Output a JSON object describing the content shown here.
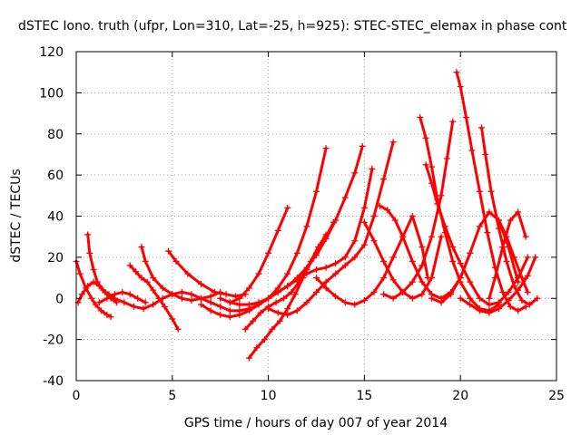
{
  "chart_data": {
    "type": "line",
    "title": "dSTEC Iono. truth (ufpr, Lon=310, Lat=-25, h=925): STEC-STEC_elemax in phase cont",
    "xlabel": "GPS time / hours of day 007 of year 2014",
    "ylabel": "dSTEC  / TECUs",
    "xlim": [
      0,
      25
    ],
    "ylim": [
      -40,
      120
    ],
    "xticks": [
      0,
      5,
      10,
      15,
      20,
      25
    ],
    "yticks": [
      -40,
      -20,
      0,
      20,
      40,
      60,
      80,
      100,
      120
    ],
    "grid": true,
    "legend": "none",
    "color": "#ff0000",
    "series": [
      {
        "x": [
          0.0,
          0.2,
          0.5,
          0.8,
          1.0,
          1.3,
          1.6,
          1.8
        ],
        "y": [
          18,
          12,
          5,
          0,
          -3,
          -6,
          -8,
          -9
        ]
      },
      {
        "x": [
          0.1,
          0.3,
          0.6,
          0.9,
          1.2,
          1.5,
          1.8,
          2.1
        ],
        "y": [
          -2,
          2,
          6,
          8,
          6,
          3,
          0,
          -2
        ]
      },
      {
        "x": [
          0.6,
          0.7,
          0.9,
          1.1,
          1.4,
          1.7,
          2.0
        ],
        "y": [
          31,
          22,
          14,
          8,
          4,
          2,
          0
        ]
      },
      {
        "x": [
          1.2,
          1.6,
          2.0,
          2.4,
          2.8,
          3.2,
          3.6
        ],
        "y": [
          -2,
          0,
          2,
          3,
          2,
          0,
          -2
        ]
      },
      {
        "x": [
          2.8,
          3.1,
          3.4,
          3.7,
          4.0,
          4.3,
          4.6,
          5.0,
          5.3
        ],
        "y": [
          16,
          13,
          10,
          8,
          4,
          0,
          -4,
          -10,
          -15
        ]
      },
      {
        "x": [
          3.4,
          3.6,
          4.0,
          4.5,
          5.0,
          5.5,
          6.0,
          6.5,
          7.0,
          7.5
        ],
        "y": [
          25,
          18,
          10,
          5,
          2,
          0,
          -1,
          0,
          1,
          3
        ]
      },
      {
        "x": [
          4.8,
          5.2,
          5.8,
          6.5,
          7.2,
          7.8,
          8.3,
          8.8
        ],
        "y": [
          23,
          18,
          12,
          7,
          3,
          2,
          1,
          2
        ]
      },
      {
        "x": [
          2.0,
          2.5,
          3.0,
          3.5,
          4.0,
          4.5,
          5.0,
          5.5,
          6.0,
          6.5,
          7.0,
          7.5,
          8.0,
          8.5,
          9.0,
          9.5,
          10.0,
          10.5,
          11.0,
          11.5,
          12.0,
          12.5,
          13.0
        ],
        "y": [
          0,
          -2,
          -4,
          -5,
          -3,
          0,
          2,
          3,
          2,
          0,
          -2,
          -4,
          -6,
          -6,
          -5,
          -3,
          0,
          5,
          12,
          22,
          35,
          52,
          73
        ]
      },
      {
        "x": [
          6.5,
          7.0,
          7.5,
          8.0,
          8.5,
          9.0,
          9.5,
          10.0,
          10.5,
          11.0,
          11.5,
          12.0,
          12.5,
          13.0,
          13.5,
          14.0,
          14.5,
          14.9
        ],
        "y": [
          -3,
          -6,
          -8,
          -9,
          -8,
          -6,
          -3,
          0,
          3,
          6,
          10,
          15,
          21,
          29,
          38,
          49,
          61,
          74
        ]
      },
      {
        "x": [
          7.5,
          8.0,
          8.5,
          9.0,
          9.5,
          10.0,
          10.5,
          11.0,
          11.5,
          12.0,
          12.5,
          13.0,
          13.5,
          14.0,
          14.5,
          15.0,
          15.4
        ],
        "y": [
          0,
          -2,
          -3,
          -3,
          -2,
          0,
          3,
          6,
          9,
          12,
          14,
          15,
          17,
          20,
          28,
          44,
          63
        ]
      },
      {
        "x": [
          8.0,
          8.5,
          9.0,
          9.5,
          10.0,
          10.5,
          11.0
        ],
        "y": [
          -2,
          0,
          5,
          12,
          22,
          33,
          44
        ]
      },
      {
        "x": [
          8.8,
          9.2,
          9.6,
          10.0,
          10.4,
          10.8,
          11.2,
          11.6,
          12.0,
          12.5,
          13.0,
          13.4
        ],
        "y": [
          -15,
          -11,
          -7,
          -4,
          -2,
          0,
          3,
          8,
          14,
          22,
          30,
          37
        ]
      },
      {
        "x": [
          9.0,
          9.4,
          9.8,
          10.2,
          10.6,
          11.0,
          11.4,
          11.8,
          12.2,
          12.6,
          13.0
        ],
        "y": [
          -29,
          -24,
          -20,
          -15,
          -11,
          -5,
          2,
          10,
          18,
          25,
          31
        ]
      },
      {
        "x": [
          10.0,
          10.5,
          11.0,
          11.5,
          12.0,
          12.5,
          13.0,
          13.5,
          14.0,
          14.5,
          15.0,
          15.5,
          16.0,
          16.5
        ],
        "y": [
          -5,
          -7,
          -8,
          -6,
          -2,
          3,
          8,
          12,
          16,
          20,
          26,
          40,
          58,
          76
        ]
      },
      {
        "x": [
          12.5,
          13.0,
          13.5,
          14.0,
          14.5,
          15.0,
          15.5,
          16.0,
          16.5,
          17.0,
          17.5,
          18.0,
          18.3
        ],
        "y": [
          10,
          5,
          1,
          -2,
          -3,
          -1,
          3,
          10,
          20,
          30,
          40,
          25,
          10
        ]
      },
      {
        "x": [
          15.0,
          15.5,
          16.0,
          16.5,
          17.0,
          17.5,
          18.0,
          18.5,
          19.0
        ],
        "y": [
          37,
          28,
          18,
          9,
          3,
          0,
          2,
          10,
          30
        ]
      },
      {
        "x": [
          15.8,
          16.2,
          16.6,
          17.0,
          17.5,
          18.0,
          18.5,
          19.0,
          19.5,
          20.0,
          20.5
        ],
        "y": [
          45,
          43,
          38,
          30,
          18,
          8,
          2,
          0,
          3,
          10,
          22
        ]
      },
      {
        "x": [
          17.9,
          18.2,
          18.5,
          18.8,
          19.2,
          19.6,
          20.0,
          20.5,
          21.0,
          21.5,
          22.0
        ],
        "y": [
          88,
          78,
          64,
          48,
          32,
          18,
          8,
          0,
          -5,
          -6,
          -3
        ]
      },
      {
        "x": [
          18.2,
          18.5,
          18.8,
          19.2,
          19.6,
          20.0,
          20.5,
          21.0,
          21.5,
          22.0,
          22.5,
          23.0,
          23.5
        ],
        "y": [
          65,
          56,
          46,
          35,
          25,
          17,
          8,
          0,
          -3,
          -2,
          3,
          10,
          20
        ]
      },
      {
        "x": [
          16.0,
          16.5,
          17.0,
          17.5,
          18.0,
          18.5,
          19.0,
          19.3,
          19.6
        ],
        "y": [
          2,
          0,
          3,
          8,
          16,
          30,
          50,
          68,
          86
        ]
      },
      {
        "x": [
          19.8,
          20.0,
          20.3,
          20.6,
          21.0,
          21.4,
          21.8,
          22.2,
          22.6,
          23.0,
          23.4
        ],
        "y": [
          110,
          103,
          88,
          72,
          52,
          32,
          15,
          3,
          -4,
          -6,
          -4
        ]
      },
      {
        "x": [
          18.5,
          19.0,
          19.5,
          20.0,
          20.5,
          21.0,
          21.5,
          22.0,
          22.5,
          23.0
        ],
        "y": [
          0,
          -2,
          2,
          10,
          22,
          35,
          42,
          38,
          25,
          8
        ]
      },
      {
        "x": [
          21.1,
          21.3,
          21.6,
          22.0,
          22.4,
          22.8,
          23.2,
          23.6,
          24.0
        ],
        "y": [
          83,
          70,
          52,
          34,
          18,
          6,
          -1,
          -3,
          0
        ]
      },
      {
        "x": [
          21.5,
          21.8,
          22.2,
          22.6,
          23.0,
          23.4
        ],
        "y": [
          0,
          10,
          25,
          38,
          42,
          30
        ]
      },
      {
        "x": [
          22.0,
          22.4,
          22.8,
          23.2,
          23.5
        ],
        "y": [
          38,
          30,
          20,
          10,
          3
        ]
      },
      {
        "x": [
          20.0,
          20.5,
          21.0,
          21.5,
          22.0,
          22.5,
          23.0,
          23.5,
          23.9
        ],
        "y": [
          0,
          -3,
          -6,
          -7,
          -5,
          -1,
          4,
          11,
          20
        ]
      }
    ]
  }
}
